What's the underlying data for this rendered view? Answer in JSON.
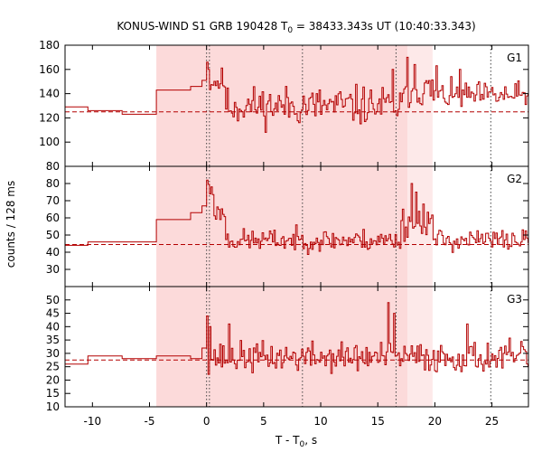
{
  "chart_data": {
    "type": "line",
    "title": "KONUS-WIND S1 GRB 190428 T",
    "title_sub": "0",
    "title_rest": " = 38433.343s UT (10:40:33.343)",
    "xlabel": "T - T",
    "xlabel_sub": "0",
    "xlabel_rest": ", s",
    "ylabel": "counts / 128 ms",
    "xlim": [
      -12.4,
      28.2
    ],
    "xticks": [
      -10,
      -5,
      0,
      5,
      10,
      15,
      20,
      25
    ],
    "xtick_labels": [
      "-10",
      "-5",
      "0",
      "5",
      "10",
      "15",
      "20",
      "25"
    ],
    "shaded_regions": [
      {
        "from": -4.4,
        "to": 17.6,
        "color": "#fcdada"
      },
      {
        "from": 17.6,
        "to": 19.8,
        "color": "#fde9e9"
      }
    ],
    "vertical_lines": [
      0.0,
      0.25,
      8.4,
      16.6,
      24.9
    ],
    "panels": [
      {
        "name": "G1",
        "ylim": [
          80,
          180
        ],
        "yticks": [
          80,
          100,
          120,
          140,
          160,
          180
        ],
        "ytick_labels": [
          "80",
          "100",
          "120",
          "140",
          "160",
          "180"
        ],
        "background": 125,
        "pre": [
          [
            -12.4,
            -10.4,
            129
          ],
          [
            -10.4,
            -7.4,
            126
          ],
          [
            -7.4,
            -4.4,
            123
          ],
          [
            -4.4,
            -1.4,
            143
          ],
          [
            -1.4,
            -0.4,
            146
          ],
          [
            -0.4,
            0,
            151
          ]
        ],
        "seed": 11,
        "segments": [
          {
            "from": 0.0,
            "to": 1.6,
            "base": 150,
            "amp": 14
          },
          {
            "from": 1.6,
            "to": 17.3,
            "base": 130,
            "amp": 20
          },
          {
            "from": 17.3,
            "to": 19.8,
            "base": 143,
            "amp": 18
          },
          {
            "from": 19.8,
            "to": 28.2,
            "base": 138,
            "amp": 14
          }
        ],
        "spikes": [
          [
            0.0,
            166
          ],
          [
            0.1,
            160
          ],
          [
            16.2,
            160
          ],
          [
            17.5,
            170
          ],
          [
            18.2,
            164
          ],
          [
            20.1,
            163
          ],
          [
            22.2,
            160
          ]
        ]
      },
      {
        "name": "G2",
        "ylim": [
          20,
          90
        ],
        "yticks": [
          30,
          40,
          50,
          60,
          70,
          80
        ],
        "ytick_labels": [
          "30",
          "40",
          "50",
          "60",
          "70",
          "80"
        ],
        "background": 44.5,
        "pre": [
          [
            -12.4,
            -10.4,
            44
          ],
          [
            -10.4,
            -4.4,
            46
          ],
          [
            -4.4,
            -1.4,
            59
          ],
          [
            -1.4,
            -0.4,
            63
          ],
          [
            -0.4,
            0,
            67
          ]
        ],
        "seed": 23,
        "segments": [
          {
            "from": 0.0,
            "to": 0.6,
            "base": 76,
            "amp": 8
          },
          {
            "from": 0.6,
            "to": 1.6,
            "base": 63,
            "amp": 6
          },
          {
            "from": 1.6,
            "to": 16.9,
            "base": 47,
            "amp": 8
          },
          {
            "from": 16.9,
            "to": 19.8,
            "base": 57,
            "amp": 12
          },
          {
            "from": 19.8,
            "to": 28.2,
            "base": 47,
            "amp": 8
          }
        ],
        "spikes": [
          [
            -0.3,
            84
          ],
          [
            0.0,
            82
          ],
          [
            0.4,
            78
          ],
          [
            17.9,
            80
          ],
          [
            18.3,
            75
          ],
          [
            19.0,
            68
          ]
        ]
      },
      {
        "name": "G3",
        "ylim": [
          10,
          55
        ],
        "yticks": [
          10,
          15,
          20,
          25,
          30,
          35,
          40,
          45,
          50
        ],
        "ytick_labels": [
          "10",
          "15",
          "20",
          "25",
          "30",
          "35",
          "40",
          "45",
          "50"
        ],
        "background": 27.5,
        "pre": [
          [
            -12.4,
            -10.4,
            26
          ],
          [
            -10.4,
            -7.4,
            29
          ],
          [
            -7.4,
            -4.4,
            28
          ],
          [
            -4.4,
            -1.4,
            29
          ],
          [
            -1.4,
            -0.4,
            28
          ],
          [
            -0.4,
            0,
            32
          ]
        ],
        "seed": 37,
        "segments": [
          {
            "from": 0.0,
            "to": 28.2,
            "base": 28.5,
            "amp": 7
          }
        ],
        "spikes": [
          [
            0.0,
            44
          ],
          [
            0.2,
            40
          ],
          [
            15.9,
            49
          ],
          [
            16.4,
            45
          ],
          [
            1.9,
            41
          ],
          [
            22.8,
            41
          ]
        ]
      }
    ]
  }
}
